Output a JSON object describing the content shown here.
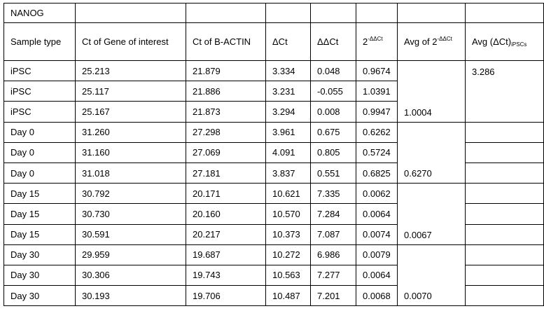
{
  "gene_label": "NANOG",
  "headers": {
    "sample_type": "Sample type",
    "ct_goi": "Ct of Gene of interest",
    "ct_actin": "Ct of B-ACTIN",
    "dct": "ΔCt",
    "ddct": "ΔΔCt",
    "fold_base": "2",
    "fold_exp": "-ΔΔCt",
    "avg_base": "Avg of 2",
    "avg_exp": "-ΔΔCt",
    "avg_dct_base": "Avg (ΔCt)",
    "avg_dct_sub": "iPSCs"
  },
  "rows": [
    {
      "sample": "iPSC",
      "ct_goi": "25.213",
      "ct_actin": "21.879",
      "dct": "3.334",
      "ddct": "0.048",
      "fold": "0.9674"
    },
    {
      "sample": "iPSC",
      "ct_goi": "25.117",
      "ct_actin": "21.886",
      "dct": "3.231",
      "ddct": "-0.055",
      "fold": "1.0391"
    },
    {
      "sample": "iPSC",
      "ct_goi": "25.167",
      "ct_actin": "21.873",
      "dct": "3.294",
      "ddct": "0.008",
      "fold": "0.9947"
    },
    {
      "sample": "Day 0",
      "ct_goi": "31.260",
      "ct_actin": "27.298",
      "dct": "3.961",
      "ddct": "0.675",
      "fold": "0.6262"
    },
    {
      "sample": "Day 0",
      "ct_goi": "31.160",
      "ct_actin": "27.069",
      "dct": "4.091",
      "ddct": "0.805",
      "fold": "0.5724"
    },
    {
      "sample": "Day 0",
      "ct_goi": "31.018",
      "ct_actin": "27.181",
      "dct": "3.837",
      "ddct": "0.551",
      "fold": "0.6825"
    },
    {
      "sample": "Day 15",
      "ct_goi": "30.792",
      "ct_actin": "20.171",
      "dct": "10.621",
      "ddct": "7.335",
      "fold": "0.0062"
    },
    {
      "sample": "Day 15",
      "ct_goi": "30.730",
      "ct_actin": "20.160",
      "dct": "10.570",
      "ddct": "7.284",
      "fold": "0.0064"
    },
    {
      "sample": "Day 15",
      "ct_goi": "30.591",
      "ct_actin": "20.217",
      "dct": "10.373",
      "ddct": "7.087",
      "fold": "0.0074"
    },
    {
      "sample": "Day 30",
      "ct_goi": "29.959",
      "ct_actin": "19.687",
      "dct": "10.272",
      "ddct": "6.986",
      "fold": "0.0079"
    },
    {
      "sample": "Day 30",
      "ct_goi": "30.306",
      "ct_actin": "19.743",
      "dct": "10.563",
      "ddct": "7.277",
      "fold": "0.0064"
    },
    {
      "sample": "Day 30",
      "ct_goi": "30.193",
      "ct_actin": "19.706",
      "dct": "10.487",
      "ddct": "7.201",
      "fold": "0.0068"
    }
  ],
  "averages": {
    "ipsc": "1.0004",
    "day0": "0.6270",
    "day15": "0.0067",
    "day30": "0.0070"
  },
  "avg_dct_ipscs": "3.286"
}
